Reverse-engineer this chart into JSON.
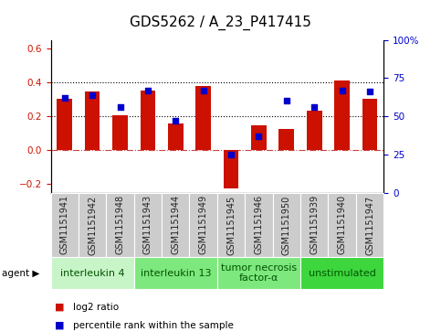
{
  "title": "GDS5262 / A_23_P417415",
  "samples": [
    "GSM1151941",
    "GSM1151942",
    "GSM1151948",
    "GSM1151943",
    "GSM1151944",
    "GSM1151949",
    "GSM1151945",
    "GSM1151946",
    "GSM1151950",
    "GSM1151939",
    "GSM1151940",
    "GSM1151947"
  ],
  "log2_ratio": [
    0.305,
    0.345,
    0.205,
    0.352,
    0.158,
    0.378,
    -0.228,
    0.148,
    0.127,
    0.235,
    0.412,
    0.303
  ],
  "percentile_rank": [
    62,
    64,
    56,
    67,
    47,
    67,
    25,
    37,
    60,
    56,
    67,
    66
  ],
  "agents": [
    {
      "label": "interleukin 4",
      "start": 0,
      "end": 3,
      "color": "#c8f5c8"
    },
    {
      "label": "interleukin 13",
      "start": 3,
      "end": 6,
      "color": "#7de87d"
    },
    {
      "label": "tumor necrosis\nfactor-α",
      "start": 6,
      "end": 9,
      "color": "#7de87d"
    },
    {
      "label": "unstimulated",
      "start": 9,
      "end": 12,
      "color": "#3dd63d"
    }
  ],
  "bar_color": "#cc1100",
  "dot_color": "#0000cc",
  "ylim_left": [
    -0.25,
    0.65
  ],
  "ylim_right": [
    0,
    100
  ],
  "yticks_left": [
    -0.2,
    0.0,
    0.2,
    0.4,
    0.6
  ],
  "yticks_right": [
    0,
    25,
    50,
    75,
    100
  ],
  "yticklabels_right": [
    "0",
    "25",
    "50",
    "75",
    "100%"
  ],
  "hlines": [
    0.2,
    0.4
  ],
  "hline_zero_color": "#cc4444",
  "sample_box_color": "#cccccc",
  "bg_color": "#ffffff",
  "agent_label_fontsize": 8,
  "sample_fontsize": 7,
  "title_fontsize": 11,
  "bar_width": 0.55
}
